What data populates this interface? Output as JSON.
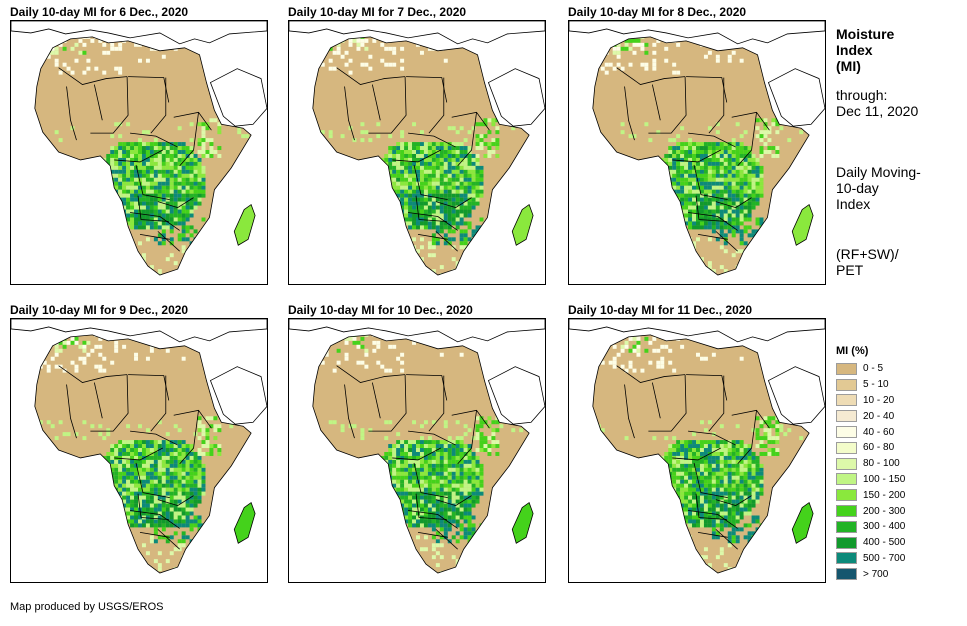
{
  "panels": [
    {
      "title": "Daily 10-day MI for 6 Dec., 2020"
    },
    {
      "title": "Daily 10-day MI for 7 Dec., 2020"
    },
    {
      "title": "Daily 10-day MI for 8 Dec., 2020"
    },
    {
      "title": "Daily 10-day MI for 9 Dec., 2020"
    },
    {
      "title": "Daily 10-day MI for 10 Dec., 2020"
    },
    {
      "title": "Daily 10-day MI for 11 Dec., 2020"
    }
  ],
  "sidebar": {
    "title_line1": "Moisture",
    "title_line2": "Index",
    "title_line3": "(MI)",
    "through_label": "through:",
    "through_date": "Dec 11, 2020",
    "desc_line1": "Daily Moving-",
    "desc_line2": "10-day",
    "desc_line3": "Index",
    "formula_line1": "(RF+SW)/",
    "formula_line2": "PET"
  },
  "legend": {
    "title": "MI (%)",
    "items": [
      {
        "label": "0 - 5",
        "color": "#d6b77f"
      },
      {
        "label": "5 - 10",
        "color": "#e2c994"
      },
      {
        "label": "10 - 20",
        "color": "#eedcb5"
      },
      {
        "label": "20 - 40",
        "color": "#f5ead2"
      },
      {
        "label": "40 - 60",
        "color": "#fdfde6"
      },
      {
        "label": "60 - 80",
        "color": "#f3fcca"
      },
      {
        "label": "80 - 100",
        "color": "#ddf9aa"
      },
      {
        "label": "100 - 150",
        "color": "#c0f585"
      },
      {
        "label": "150 - 200",
        "color": "#8ae83d"
      },
      {
        "label": "200 - 300",
        "color": "#44d21b"
      },
      {
        "label": "300 - 400",
        "color": "#22b326"
      },
      {
        "label": "400 - 500",
        "color": "#119a2c"
      },
      {
        "label": "500 - 700",
        "color": "#0c8a7a"
      },
      {
        "label": "> 700",
        "color": "#15566e"
      }
    ]
  },
  "credit": "Map produced by USGS/EROS"
}
